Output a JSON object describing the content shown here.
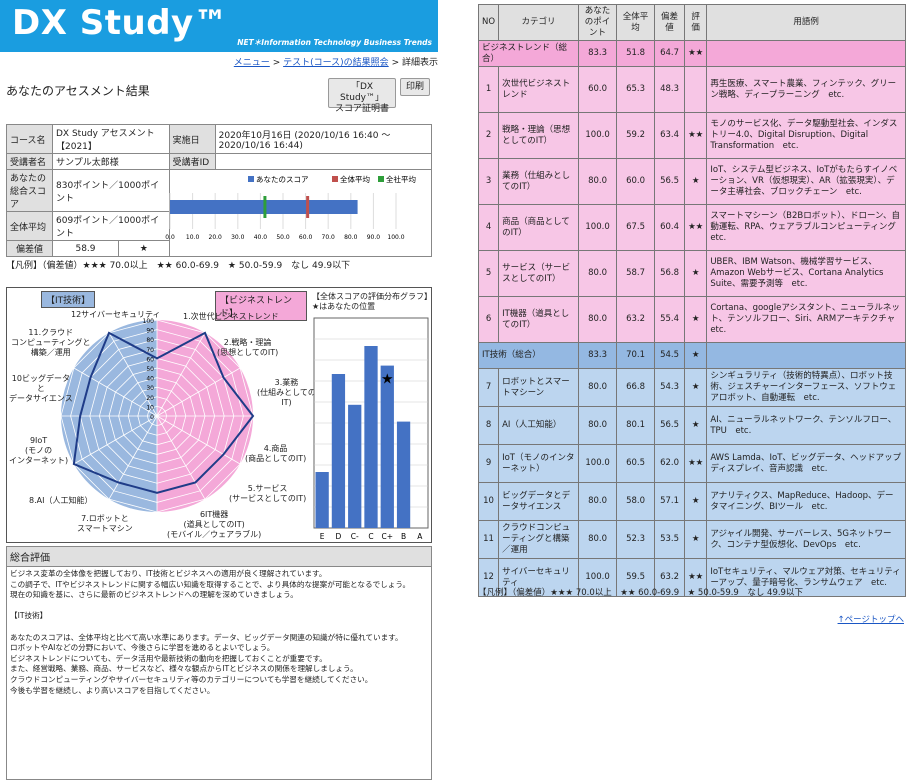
{
  "header": {
    "title": "DX Study™",
    "subtitle": "NET＊Information Technology Business Trends"
  },
  "breadcrumb": {
    "menu": "メニュー",
    "test": "テスト(コース)の結果照会",
    "current": "詳細表示",
    "sep": ">"
  },
  "page_title": "あなたのアセスメント結果",
  "buttons": {
    "cert_line1": "「DX Study™」",
    "cert_line2": "スコア証明書",
    "print": "印刷"
  },
  "info": {
    "course_label": "コース名",
    "course_value": "DX Study アセスメント【2021】",
    "date_label": "実施日",
    "date_value": "2020年10月16日 (2020/10/16 16:40 ～ 2020/10/16 16:44)",
    "examinee_label": "受講者名",
    "examinee_value": "サンプル太郎様",
    "examinee_id_label": "受講者ID",
    "examinee_id_value": "",
    "total_label": "あなたの総合スコア",
    "total_value": "830ポイント／1000ポイント",
    "avg_label": "全体平均",
    "avg_value": "609ポイント／1000ポイント",
    "dev_label": "偏差値",
    "dev_value": "58.9",
    "dev_rating": "★"
  },
  "legend_text": "【凡例】（偏差値）★★★ 70.0以上　★★ 60.0-69.9　★ 50.0-59.9　なし 49.9以下",
  "bar_chart": {
    "chart_data": {
      "type": "bar",
      "series": [
        {
          "name": "あなたのスコア",
          "values": [
            830
          ]
        }
      ],
      "markers": [
        {
          "name": "全体平均",
          "value": 609
        },
        {
          "name": "全社平均",
          "value": 420
        }
      ],
      "xlim": [
        0,
        1000
      ],
      "ticks": [
        "0.0",
        "10.0",
        "20.0",
        "30.0",
        "40.0",
        "50.0",
        "60.0",
        "70.0",
        "80.0",
        "90.0",
        "100.0"
      ]
    },
    "legend": [
      "あなたのスコア",
      "全体平均",
      "全社平均"
    ],
    "colors": {
      "you": "#4472c4",
      "avg": "#c0504d",
      "co": "#2e9e3a"
    }
  },
  "radar": {
    "tag_it": "【IT技術】",
    "tag_biz": "【ビジネストレンド】",
    "labels": [
      "1.次世代ビジネストレンド",
      "2.戦略・理論\n(思想としてのIT)",
      "3.業務\n(仕組みとしての\nIT)",
      "4.商品\n(商品としてのIT)",
      "5.サービス\n(サービスとしてのIT)",
      "6IT機器\n(道具としてのIT)\n(モバイル／ウェアラブル)",
      "7.ロボットと\nスマートマシン",
      "8.AI（人工知能）",
      "9IoT\n(モノの\nインターネット)",
      "10ビッグデータ\nと\nデータサイエンス",
      "11.クラウド\nコンピューティングと\n構築／運用",
      "12サイバーセキュリティ"
    ],
    "chart_data": {
      "type": "radar",
      "values": [
        60,
        100,
        80,
        100,
        80,
        80,
        80,
        80,
        100,
        80,
        80,
        100
      ],
      "rmax": 100
    },
    "scale": [
      "100",
      "90",
      "80",
      "70",
      "60",
      "50",
      "40",
      "30",
      "20",
      "10",
      "0"
    ]
  },
  "dist": {
    "title": "【全体スコアの評価分布グラフ】",
    "sub": "★はあなたの位置",
    "chart_data": {
      "type": "bar",
      "categories": [
        "E",
        "D",
        "C-",
        "C",
        "C+",
        "B",
        "A"
      ],
      "values": [
        20,
        55,
        44,
        65,
        58,
        38,
        0
      ],
      "you_index": 4
    }
  },
  "summary": {
    "title": "総合評価",
    "lines": [
      "ビジネス変革の全体像を把握しており、IT技術とビジネスへの適用が良く理解されています。",
      "この調子で、ITやビジネストレンドに関する幅広い知識を取得することで、より具体的な提案が可能となるでしょう。",
      "現在の知識を基に、さらに最新のビジネストレンドへの理解を深めていきましょう。",
      "",
      "【IT技術】",
      "",
      "あなたのスコアは、全体平均と比べて高い水準にあります。データ、ビッグデータ関連の知識が特に優れています。",
      "ロボットやAIなどの分野において、今後さらに学習を進めるとよいでしょう。",
      "ビジネストレンドについても、データ活用や最新技術の動向を把握しておくことが重要です。",
      "また、経営戦略、業務、商品、サービスなど、様々な観点からITとビジネスの関係を理解しましょう。",
      "クラウドコンピューティングやサイバーセキュリティ等のカテゴリーについても学習を継続してください。",
      "今後も学習を継続し、より高いスコアを目指してください。"
    ]
  },
  "table": {
    "headers": [
      "NO",
      "カテゴリ",
      "あなたのポイント",
      "全体平均",
      "偏差値",
      "評価",
      "用語例"
    ],
    "biz_group": {
      "name": "ビジネストレンド（総合）",
      "you": "83.3",
      "avg": "51.8",
      "dev": "64.7",
      "rate": "★★"
    },
    "biz_rows": [
      {
        "no": "1",
        "cat": "次世代ビジネストレンド",
        "you": "60.0",
        "avg": "65.3",
        "dev": "48.3",
        "rate": "",
        "terms": "再生医療、スマート農業、フィンテック、グリーン戦略、ディープラーニング　etc."
      },
      {
        "no": "2",
        "cat": "戦略・理論（思想としてのIT）",
        "you": "100.0",
        "avg": "59.2",
        "dev": "63.4",
        "rate": "★★",
        "terms": "モノのサービス化、データ駆動型社会、インダストリー4.0、Digital Disruption、Digital Transformation　etc."
      },
      {
        "no": "3",
        "cat": "業務（仕組みとしてのIT）",
        "you": "80.0",
        "avg": "60.0",
        "dev": "56.5",
        "rate": "★",
        "terms": "IoT、システム型ビジネス、IoTがもたらすイノベーション、VR（仮想現実）、AR（拡張現実）、データ主導社会、ブロックチェーン　etc."
      },
      {
        "no": "4",
        "cat": "商品（商品としてのIT）",
        "you": "100.0",
        "avg": "67.5",
        "dev": "60.4",
        "rate": "★★",
        "terms": "スマートマシーン（B2Bロボット）、ドローン、自動運転、RPA、ウェアラブルコンピューティング　etc."
      },
      {
        "no": "5",
        "cat": "サービス（サービスとしてのIT）",
        "you": "80.0",
        "avg": "58.7",
        "dev": "56.8",
        "rate": "★",
        "terms": "UBER、IBM Watson、機械学習サービス、Amazon Webサービス、Cortana Analytics Suite、需要予測等　etc."
      },
      {
        "no": "6",
        "cat": "IT機器（道具としてのIT）",
        "you": "80.0",
        "avg": "63.2",
        "dev": "55.4",
        "rate": "★",
        "terms": "Cortana、googleアシスタント、ニューラルネット、テンソルフロー、Siri、ARMアーキテクチャ　etc."
      }
    ],
    "it_group": {
      "name": "IT技術（総合）",
      "you": "83.3",
      "avg": "70.1",
      "dev": "54.5",
      "rate": "★"
    },
    "it_rows": [
      {
        "no": "7",
        "cat": "ロボットとスマートマシーン",
        "you": "80.0",
        "avg": "66.8",
        "dev": "54.3",
        "rate": "★",
        "terms": "シンギュラリティ（技術的特異点）、ロボット技術、ジェスチャーインターフェース、ソフトウェアロボット、自動運転　etc."
      },
      {
        "no": "8",
        "cat": "AI（人工知能）",
        "you": "80.0",
        "avg": "80.1",
        "dev": "56.5",
        "rate": "★",
        "terms": "AI、ニューラルネットワーク、テンソルフロー、TPU　etc."
      },
      {
        "no": "9",
        "cat": "IoT（モノのインターネット）",
        "you": "100.0",
        "avg": "60.5",
        "dev": "62.0",
        "rate": "★★",
        "terms": "AWS Lamda、IoT、ビッグデータ、ヘッドアップディスプレイ、音声認識　etc."
      },
      {
        "no": "10",
        "cat": "ビッグデータとデータサイエンス",
        "you": "80.0",
        "avg": "58.0",
        "dev": "57.1",
        "rate": "★",
        "terms": "アナリティクス、MapReduce、Hadoop、データマイニング、BIツール　etc."
      },
      {
        "no": "11",
        "cat": "クラウドコンピューティングと構築／運用",
        "you": "80.0",
        "avg": "52.3",
        "dev": "53.5",
        "rate": "★",
        "terms": "アジャイル開発、サーバーレス、5Gネットワーク、コンテナ型仮想化、DevOps　etc."
      },
      {
        "no": "12",
        "cat": "サイバーセキュリティ",
        "you": "100.0",
        "avg": "59.5",
        "dev": "63.2",
        "rate": "★★",
        "terms": "IoTセキュリティ、マルウェア対策、セキュリティーアップ、量子暗号化、ランサムウェア　etc."
      }
    ]
  },
  "legend2": "【凡例】（偏差値）★★★ 70.0以上　★★ 60.0-69.9　★ 50.0-59.9　なし 49.9以下",
  "page_top": "↑ページトップへ"
}
